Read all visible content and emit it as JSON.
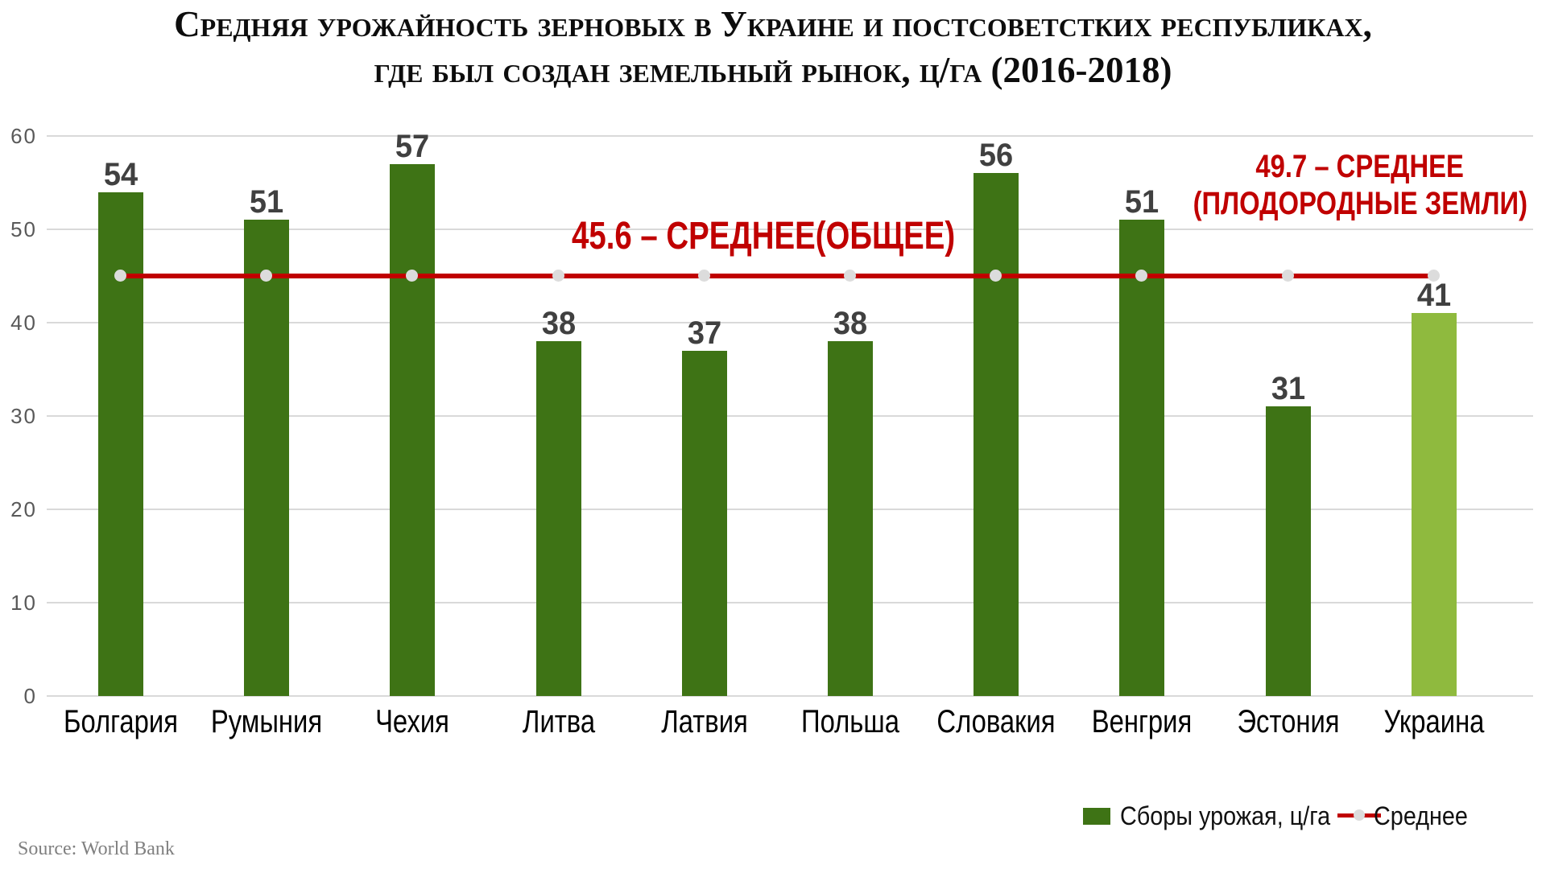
{
  "chart_data": {
    "type": "bar",
    "title": "Средняя урожайность зерновых в Украине и постсоветстких республиках, где был создан земельный рынок, ц/га (2016-2018)",
    "title_lines": [
      "Средняя урожайность зерновых в Украине и постсоветстких республиках,",
      "где был создан земельный рынок, ц/га (2016-2018)"
    ],
    "categories": [
      "Болгария",
      "Румыния",
      "Чехия",
      "Литва",
      "Латвия",
      "Польша",
      "Словакия",
      "Венгрия",
      "Эстония",
      "Украина"
    ],
    "category_slugs": [
      "bulgaria",
      "romania",
      "czechia",
      "lithuania",
      "latvia",
      "poland",
      "slovakia",
      "hungary",
      "estonia",
      "ukraine"
    ],
    "values": [
      54,
      51,
      57,
      38,
      37,
      38,
      56,
      51,
      31,
      41
    ],
    "highlight_index": 9,
    "series_name": "Сборы урожая, ц/га",
    "mean_line": {
      "name": "Среднее",
      "value": 45.6,
      "drawn_at_value": 45,
      "label": "45.6 – СРЕДНЕЕ(ОБЩЕЕ)"
    },
    "fertile_mean": {
      "value": 49.7,
      "label_lines": [
        "49.7 – СРЕДНЕЕ",
        "(ПЛОДОРОДНЫЕ ЗЕМЛИ)"
      ]
    },
    "ylim": [
      0,
      60
    ],
    "yticks": [
      0,
      10,
      20,
      30,
      40,
      50,
      60
    ],
    "grid": true,
    "legend_position": "bottom-right",
    "source": "Source: World Bank",
    "colors": {
      "bar": "#3E7315",
      "bar_highlight": "#8FBA3E",
      "mean_line": "#C00000",
      "annotation_text": "#C00000",
      "value_label": "#404040",
      "tick_label": "#595959",
      "gridline": "#D9D9D9",
      "marker": "#DCDCDC"
    }
  }
}
